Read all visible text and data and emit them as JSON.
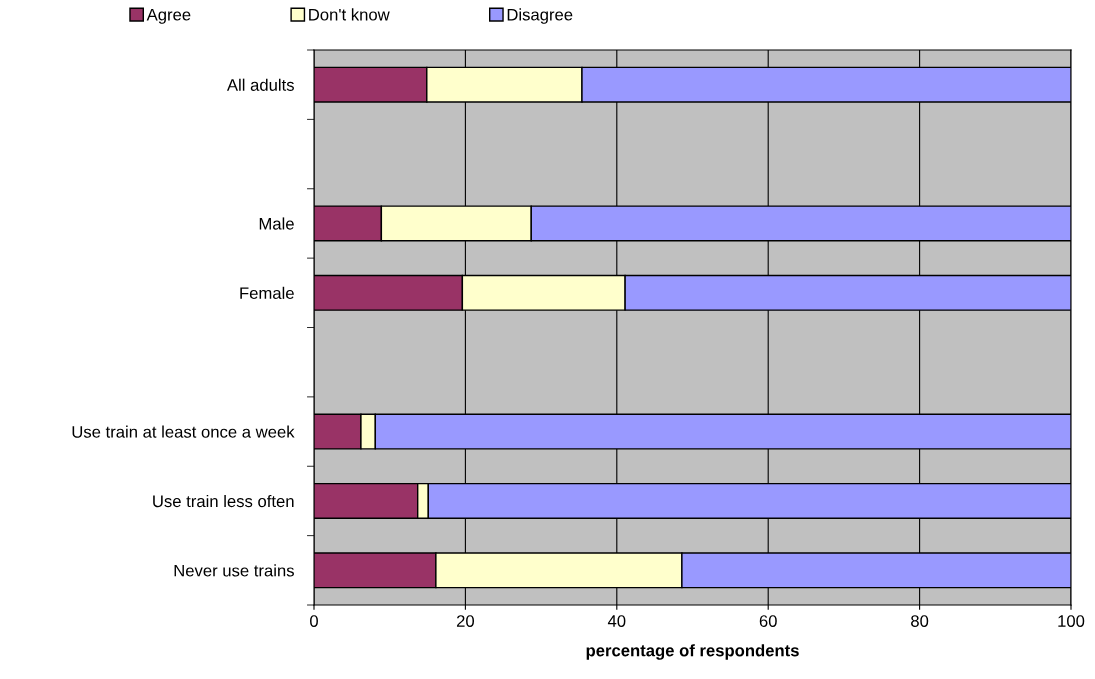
{
  "chart_data": {
    "type": "bar",
    "orientation": "horizontal",
    "stacked": true,
    "categories": [
      "All adults",
      null,
      "Male",
      "Female",
      null,
      "Use train at least once a week",
      "Use train less often",
      "Never use trains"
    ],
    "series": [
      {
        "name": "Agree",
        "color": "#993366",
        "values": [
          14.9,
          null,
          8.9,
          19.6,
          null,
          6.2,
          13.7,
          16.1
        ]
      },
      {
        "name": "Don't know",
        "color": "#ffffcc",
        "values": [
          20.5,
          null,
          19.8,
          21.5,
          null,
          1.9,
          1.4,
          32.5
        ]
      },
      {
        "name": "Disagree",
        "color": "#9999ff",
        "values": [
          64.6,
          null,
          71.3,
          58.9,
          null,
          91.9,
          84.9,
          51.4
        ]
      }
    ],
    "xlabel": "percentage of respondents",
    "xlim": [
      0,
      100
    ],
    "xticks": [
      0,
      20,
      40,
      60,
      80,
      100
    ],
    "grid": "x",
    "legend": "top left"
  }
}
